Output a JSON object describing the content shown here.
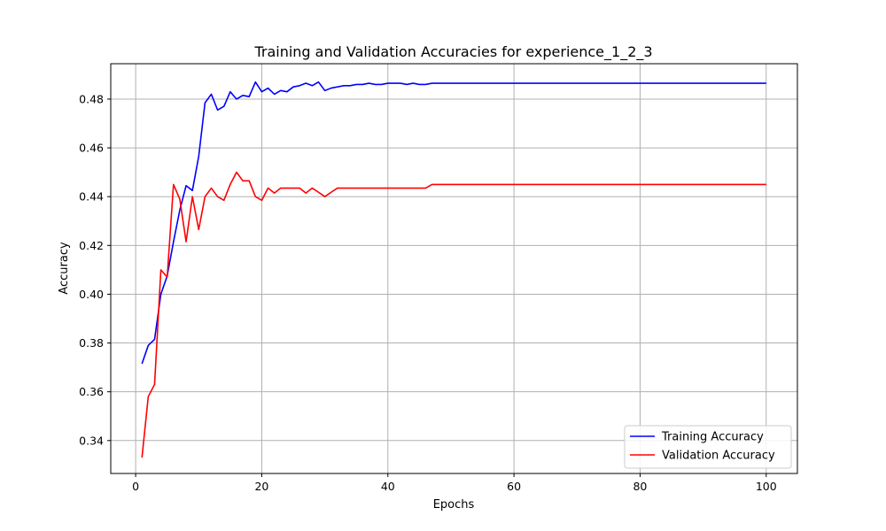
{
  "chart_data": {
    "type": "line",
    "title": "Training and Validation Accuracies for experience_1_2_3",
    "xlabel": "Epochs",
    "ylabel": "Accuracy",
    "xlim": [
      -3.95,
      104.95
    ],
    "ylim": [
      0.3265,
      0.4945
    ],
    "xticks": [
      0,
      20,
      40,
      60,
      80,
      100
    ],
    "yticks": [
      0.34,
      0.36,
      0.38,
      0.4,
      0.42,
      0.44,
      0.46,
      0.48
    ],
    "ytick_labels": [
      "0.34",
      "0.36",
      "0.38",
      "0.40",
      "0.42",
      "0.44",
      "0.46",
      "0.48"
    ],
    "grid": true,
    "legend": "bottom-right",
    "x": [
      1,
      2,
      3,
      4,
      5,
      6,
      7,
      8,
      9,
      10,
      11,
      12,
      13,
      14,
      15,
      16,
      17,
      18,
      19,
      20,
      21,
      22,
      23,
      24,
      25,
      26,
      27,
      28,
      29,
      30,
      31,
      32,
      33,
      34,
      35,
      36,
      37,
      38,
      39,
      40,
      41,
      42,
      43,
      44,
      45,
      46,
      47,
      48,
      49,
      50,
      51,
      52,
      53,
      54,
      55,
      56,
      57,
      58,
      59,
      60,
      61,
      62,
      63,
      64,
      65,
      66,
      67,
      68,
      69,
      70,
      71,
      72,
      73,
      74,
      75,
      76,
      77,
      78,
      79,
      80,
      81,
      82,
      83,
      84,
      85,
      86,
      87,
      88,
      89,
      90,
      91,
      92,
      93,
      94,
      95,
      96,
      97,
      98,
      99,
      100
    ],
    "series": [
      {
        "name": "Training Accuracy",
        "color": "#0000ff",
        "values": [
          0.3715,
          0.379,
          0.3815,
          0.4,
          0.4075,
          0.4215,
          0.4345,
          0.4445,
          0.4425,
          0.4565,
          0.4785,
          0.482,
          0.4755,
          0.477,
          0.483,
          0.48,
          0.4815,
          0.481,
          0.487,
          0.483,
          0.4845,
          0.482,
          0.4835,
          0.483,
          0.485,
          0.4855,
          0.4865,
          0.4855,
          0.487,
          0.4835,
          0.4845,
          0.485,
          0.4855,
          0.4855,
          0.486,
          0.486,
          0.4865,
          0.486,
          0.486,
          0.4865,
          0.4865,
          0.4865,
          0.486,
          0.4865,
          0.486,
          0.486,
          0.4865,
          0.4865,
          0.4865,
          0.4865,
          0.4865,
          0.4865,
          0.4865,
          0.4865,
          0.4865,
          0.4865,
          0.4865,
          0.4865,
          0.4865,
          0.4865,
          0.4865,
          0.4865,
          0.4865,
          0.4865,
          0.4865,
          0.4865,
          0.4865,
          0.4865,
          0.4865,
          0.4865,
          0.4865,
          0.4865,
          0.4865,
          0.4865,
          0.4865,
          0.4865,
          0.4865,
          0.4865,
          0.4865,
          0.4865,
          0.4865,
          0.4865,
          0.4865,
          0.4865,
          0.4865,
          0.4865,
          0.4865,
          0.4865,
          0.4865,
          0.4865,
          0.4865,
          0.4865,
          0.4865,
          0.4865,
          0.4865,
          0.4865,
          0.4865,
          0.4865,
          0.4865,
          0.4865
        ]
      },
      {
        "name": "Validation Accuracy",
        "color": "#ff0000",
        "values": [
          0.333,
          0.358,
          0.363,
          0.41,
          0.407,
          0.445,
          0.439,
          0.4215,
          0.44,
          0.4265,
          0.44,
          0.4435,
          0.44,
          0.4385,
          0.445,
          0.45,
          0.4465,
          0.4465,
          0.44,
          0.4385,
          0.4435,
          0.4415,
          0.4435,
          0.4435,
          0.4435,
          0.4435,
          0.4415,
          0.4435,
          0.4418,
          0.44,
          0.4418,
          0.4435,
          0.4435,
          0.4435,
          0.4435,
          0.4435,
          0.4435,
          0.4435,
          0.4435,
          0.4435,
          0.4435,
          0.4435,
          0.4435,
          0.4435,
          0.4435,
          0.4435,
          0.445,
          0.445,
          0.445,
          0.445,
          0.445,
          0.445,
          0.445,
          0.445,
          0.445,
          0.445,
          0.445,
          0.445,
          0.445,
          0.445,
          0.445,
          0.445,
          0.445,
          0.445,
          0.445,
          0.445,
          0.445,
          0.445,
          0.445,
          0.445,
          0.445,
          0.445,
          0.445,
          0.445,
          0.445,
          0.445,
          0.445,
          0.445,
          0.445,
          0.445,
          0.445,
          0.445,
          0.445,
          0.445,
          0.445,
          0.445,
          0.445,
          0.445,
          0.445,
          0.445,
          0.445,
          0.445,
          0.445,
          0.445,
          0.445,
          0.445,
          0.445,
          0.445,
          0.445,
          0.445
        ]
      }
    ]
  }
}
